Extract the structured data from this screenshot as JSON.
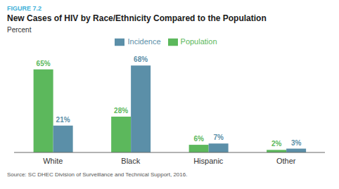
{
  "chart_data": {
    "type": "bar",
    "title": "New Cases of HIV by Race/Ethnicity Compared to the Population",
    "annotations": [
      "FIGURE 7.2",
      "Source: SC DHEC Division of Surveillance and Technical Support, 2016."
    ],
    "ylabel": "Percent",
    "categories": [
      "White",
      "Black",
      "Hispanic",
      "Other"
    ],
    "series": [
      {
        "name": "Population",
        "color": "#5cb85c",
        "values": [
          65,
          28,
          6,
          2
        ],
        "value_labels": [
          "65%",
          "28%",
          "6%",
          "2%"
        ]
      },
      {
        "name": "Incidence",
        "color": "#5b8fa8",
        "values": [
          21,
          68,
          7,
          3
        ],
        "value_labels": [
          "21%",
          "68%",
          "7%",
          "3%"
        ]
      }
    ],
    "ylim": [
      0,
      78
    ],
    "legend": "top",
    "data_labels": true,
    "tick_labels": "x",
    "grid": false
  }
}
